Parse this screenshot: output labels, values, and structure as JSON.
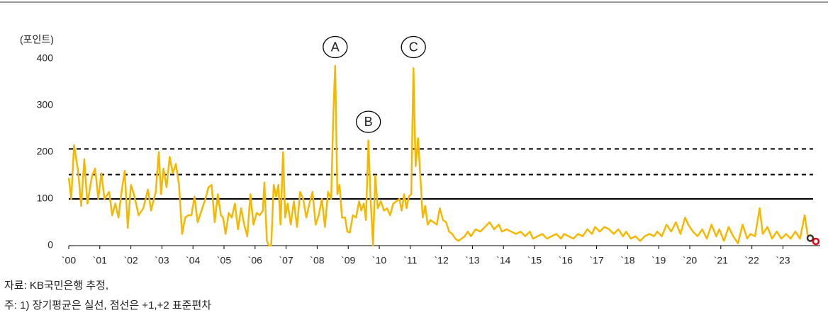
{
  "chart_data": {
    "type": "line",
    "y_label": "(포인트)",
    "notes": [
      "자료: KB국민은행 추정,",
      "주: 1) 장기평균은 실선, 점선은 +1,+2 표준편차"
    ],
    "xlim": [
      2000,
      2024.2
    ],
    "xticks": [
      {
        "value": 2000,
        "label": "`00"
      },
      {
        "value": 2001,
        "label": "`01"
      },
      {
        "value": 2002,
        "label": "`02"
      },
      {
        "value": 2003,
        "label": "`03"
      },
      {
        "value": 2004,
        "label": "`04"
      },
      {
        "value": 2005,
        "label": "`05"
      },
      {
        "value": 2006,
        "label": "`06"
      },
      {
        "value": 2007,
        "label": "`07"
      },
      {
        "value": 2008,
        "label": "`08"
      },
      {
        "value": 2009,
        "label": "`09"
      },
      {
        "value": 2010,
        "label": "`10"
      },
      {
        "value": 2011,
        "label": "`11"
      },
      {
        "value": 2012,
        "label": "`12"
      },
      {
        "value": 2013,
        "label": "`13"
      },
      {
        "value": 2014,
        "label": "`14"
      },
      {
        "value": 2015,
        "label": "`15"
      },
      {
        "value": 2016,
        "label": "`16"
      },
      {
        "value": 2017,
        "label": "`17"
      },
      {
        "value": 2018,
        "label": "`18"
      },
      {
        "value": 2019,
        "label": "`19"
      },
      {
        "value": 2020,
        "label": "`20"
      },
      {
        "value": 2021,
        "label": "`21"
      },
      {
        "value": 2022,
        "label": "`22"
      },
      {
        "value": 2023,
        "label": "`23"
      }
    ],
    "ylim": [
      0,
      400
    ],
    "yticks": [
      0,
      100,
      200,
      300,
      400
    ],
    "hlines": [
      {
        "value": 100,
        "style": "solid"
      },
      {
        "value": 152,
        "style": "dashed"
      },
      {
        "value": 207,
        "style": "dashed"
      }
    ],
    "annotations": [
      {
        "text": "A",
        "x": 2008.58,
        "y": 425
      },
      {
        "text": "B",
        "x": 2009.65,
        "y": 265
      },
      {
        "text": "C",
        "x": 2011.1,
        "y": 425
      }
    ],
    "markers": [
      {
        "x": 2023.88,
        "y": 16,
        "color": "#333333"
      },
      {
        "x": 2024.06,
        "y": 9,
        "color": "#e60012"
      }
    ],
    "x": [
      2000,
      2000.08,
      2000.17,
      2000.3,
      2000.4,
      2000.5,
      2000.6,
      2000.75,
      2000.85,
      2000.95,
      2001.05,
      2001.15,
      2001.3,
      2001.4,
      2001.5,
      2001.6,
      2001.7,
      2001.8,
      2001.9,
      2002.0,
      2002.1,
      2002.25,
      2002.4,
      2002.55,
      2002.65,
      2002.8,
      2002.9,
      2002.97,
      2003.05,
      2003.15,
      2003.25,
      2003.35,
      2003.45,
      2003.55,
      2003.65,
      2003.75,
      2003.85,
      2003.95,
      2004.05,
      2004.15,
      2004.3,
      2004.4,
      2004.5,
      2004.6,
      2004.7,
      2004.8,
      2004.9,
      2004.97,
      2005.05,
      2005.15,
      2005.25,
      2005.35,
      2005.45,
      2005.55,
      2005.65,
      2005.75,
      2005.85,
      2005.95,
      2006.05,
      2006.15,
      2006.25,
      2006.3,
      2006.38,
      2006.45,
      2006.52,
      2006.6,
      2006.68,
      2006.75,
      2006.82,
      2006.9,
      2006.97,
      2007.05,
      2007.15,
      2007.25,
      2007.35,
      2007.45,
      2007.55,
      2007.65,
      2007.75,
      2007.85,
      2007.95,
      2008.05,
      2008.15,
      2008.25,
      2008.35,
      2008.45,
      2008.52,
      2008.58,
      2008.65,
      2008.72,
      2008.8,
      2008.9,
      2008.97,
      2009.05,
      2009.15,
      2009.25,
      2009.35,
      2009.42,
      2009.5,
      2009.57,
      2009.65,
      2009.72,
      2009.8,
      2009.87,
      2009.95,
      2010.05,
      2010.15,
      2010.25,
      2010.35,
      2010.45,
      2010.55,
      2010.65,
      2010.72,
      2010.8,
      2010.88,
      2010.95,
      2011.03,
      2011.1,
      2011.17,
      2011.25,
      2011.32,
      2011.4,
      2011.48,
      2011.56,
      2011.65,
      2011.75,
      2011.85,
      2011.95,
      2012.05,
      2012.15,
      2012.25,
      2012.35,
      2012.45,
      2012.55,
      2012.65,
      2012.75,
      2012.85,
      2012.95,
      2013.1,
      2013.25,
      2013.4,
      2013.55,
      2013.7,
      2013.85,
      2013.95,
      2014.1,
      2014.25,
      2014.4,
      2014.55,
      2014.7,
      2014.85,
      2014.95,
      2015.1,
      2015.25,
      2015.4,
      2015.55,
      2015.7,
      2015.85,
      2015.95,
      2016.1,
      2016.25,
      2016.4,
      2016.55,
      2016.7,
      2016.85,
      2016.95,
      2017.1,
      2017.25,
      2017.4,
      2017.55,
      2017.7,
      2017.85,
      2017.95,
      2018.1,
      2018.25,
      2018.4,
      2018.55,
      2018.7,
      2018.85,
      2018.95,
      2019.1,
      2019.25,
      2019.4,
      2019.55,
      2019.7,
      2019.85,
      2019.95,
      2020.1,
      2020.25,
      2020.4,
      2020.55,
      2020.7,
      2020.85,
      2020.95,
      2021.1,
      2021.25,
      2021.4,
      2021.55,
      2021.7,
      2021.85,
      2021.95,
      2022.1,
      2022.25,
      2022.35,
      2022.5,
      2022.65,
      2022.8,
      2022.95,
      2023.1,
      2023.25,
      2023.4,
      2023.55,
      2023.7,
      2023.8,
      2023.88
    ],
    "series": [
      {
        "color": "#f5b800",
        "values": [
          145,
          100,
          215,
          160,
          85,
          185,
          90,
          150,
          165,
          100,
          155,
          100,
          115,
          65,
          90,
          60,
          115,
          160,
          38,
          130,
          110,
          65,
          80,
          120,
          75,
          115,
          200,
          110,
          165,
          125,
          190,
          155,
          175,
          130,
          25,
          60,
          65,
          65,
          105,
          50,
          80,
          100,
          125,
          130,
          50,
          110,
          65,
          60,
          25,
          70,
          60,
          90,
          35,
          80,
          45,
          20,
          110,
          45,
          70,
          65,
          75,
          135,
          10,
          0,
          0,
          130,
          105,
          130,
          45,
          200,
          60,
          90,
          45,
          95,
          40,
          115,
          100,
          60,
          90,
          115,
          45,
          65,
          100,
          40,
          115,
          100,
          280,
          385,
          110,
          130,
          60,
          60,
          30,
          28,
          65,
          60,
          95,
          75,
          90,
          55,
          225,
          100,
          0,
          150,
          80,
          95,
          75,
          80,
          65,
          90,
          95,
          100,
          75,
          110,
          80,
          105,
          110,
          380,
          170,
          230,
          150,
          60,
          85,
          45,
          55,
          50,
          45,
          80,
          55,
          50,
          30,
          25,
          15,
          10,
          15,
          20,
          30,
          20,
          35,
          30,
          40,
          50,
          35,
          45,
          30,
          35,
          30,
          25,
          30,
          20,
          30,
          15,
          20,
          25,
          15,
          20,
          25,
          15,
          25,
          20,
          15,
          25,
          20,
          35,
          25,
          40,
          30,
          40,
          35,
          25,
          35,
          20,
          30,
          15,
          20,
          10,
          20,
          25,
          20,
          30,
          20,
          45,
          30,
          50,
          25,
          60,
          45,
          30,
          20,
          35,
          15,
          45,
          20,
          35,
          10,
          40,
          20,
          5,
          45,
          15,
          25,
          20,
          80,
          25,
          40,
          15,
          30,
          15,
          25,
          15,
          30,
          15,
          65,
          20,
          16
        ]
      }
    ]
  }
}
